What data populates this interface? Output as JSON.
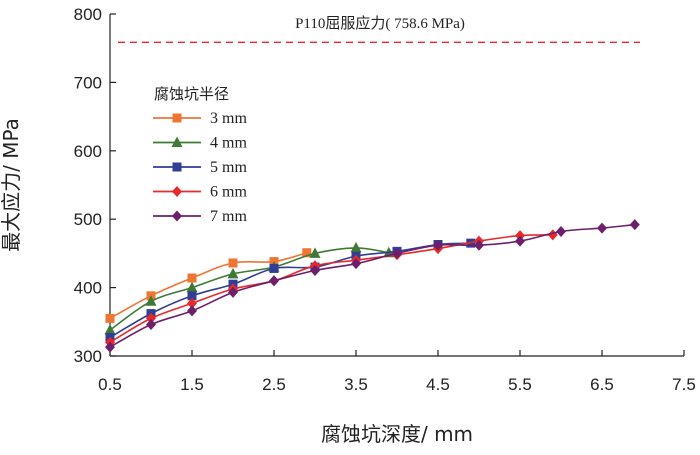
{
  "chart_data": {
    "type": "line",
    "xlabel": "腐蚀坑深度/ mm",
    "ylabel": "最大应力/ MPa",
    "xlim": [
      0.5,
      7.5
    ],
    "ylim": [
      300,
      800
    ],
    "xticks": [
      "0.5",
      "1.5",
      "2.5",
      "3.5",
      "4.5",
      "5.5",
      "6.5",
      "7.5"
    ],
    "yticks": [
      "300",
      "400",
      "500",
      "600",
      "700",
      "800"
    ],
    "reference_line": {
      "label": "P110屈服应力( 758.6 MPa)",
      "value": 758.6,
      "color": "#e8282b"
    },
    "legend": {
      "title": "腐蚀坑半径",
      "position": "top-left"
    },
    "series": [
      {
        "name": "3 mm",
        "color": "#ef7533",
        "marker": "square",
        "x": [
          0.5,
          1.0,
          1.5,
          2.0,
          2.5,
          2.9
        ],
        "y": [
          355,
          388,
          414,
          436,
          438,
          451
        ]
      },
      {
        "name": "4 mm",
        "color": "#3f7a35",
        "marker": "triangle",
        "x": [
          0.5,
          1.0,
          1.5,
          2.0,
          2.5,
          3.0,
          3.5,
          3.9
        ],
        "y": [
          338,
          380,
          400,
          420,
          430,
          450,
          458,
          451
        ]
      },
      {
        "name": "5 mm",
        "color": "#2f3f95",
        "marker": "square",
        "x": [
          0.5,
          1.0,
          1.5,
          2.0,
          2.5,
          3.0,
          3.5,
          4.0,
          4.5,
          4.9
        ],
        "y": [
          327,
          362,
          388,
          405,
          428,
          430,
          446,
          453,
          463,
          465
        ]
      },
      {
        "name": "6 mm",
        "color": "#e8282b",
        "marker": "diamond",
        "x": [
          0.5,
          1.0,
          1.5,
          2.0,
          2.5,
          3.0,
          3.5,
          4.0,
          4.5,
          5.0,
          5.5,
          5.9
        ],
        "y": [
          320,
          355,
          377,
          398,
          410,
          432,
          440,
          448,
          457,
          468,
          476,
          477
        ]
      },
      {
        "name": "7 mm",
        "color": "#6e1f6b",
        "marker": "diamond",
        "x": [
          0.5,
          1.0,
          1.5,
          2.0,
          2.5,
          3.0,
          3.5,
          4.0,
          4.5,
          5.0,
          5.5,
          6.0,
          6.5,
          6.9
        ],
        "y": [
          313,
          346,
          366,
          393,
          410,
          425,
          435,
          450,
          462,
          462,
          468,
          482,
          487,
          492
        ]
      }
    ]
  }
}
